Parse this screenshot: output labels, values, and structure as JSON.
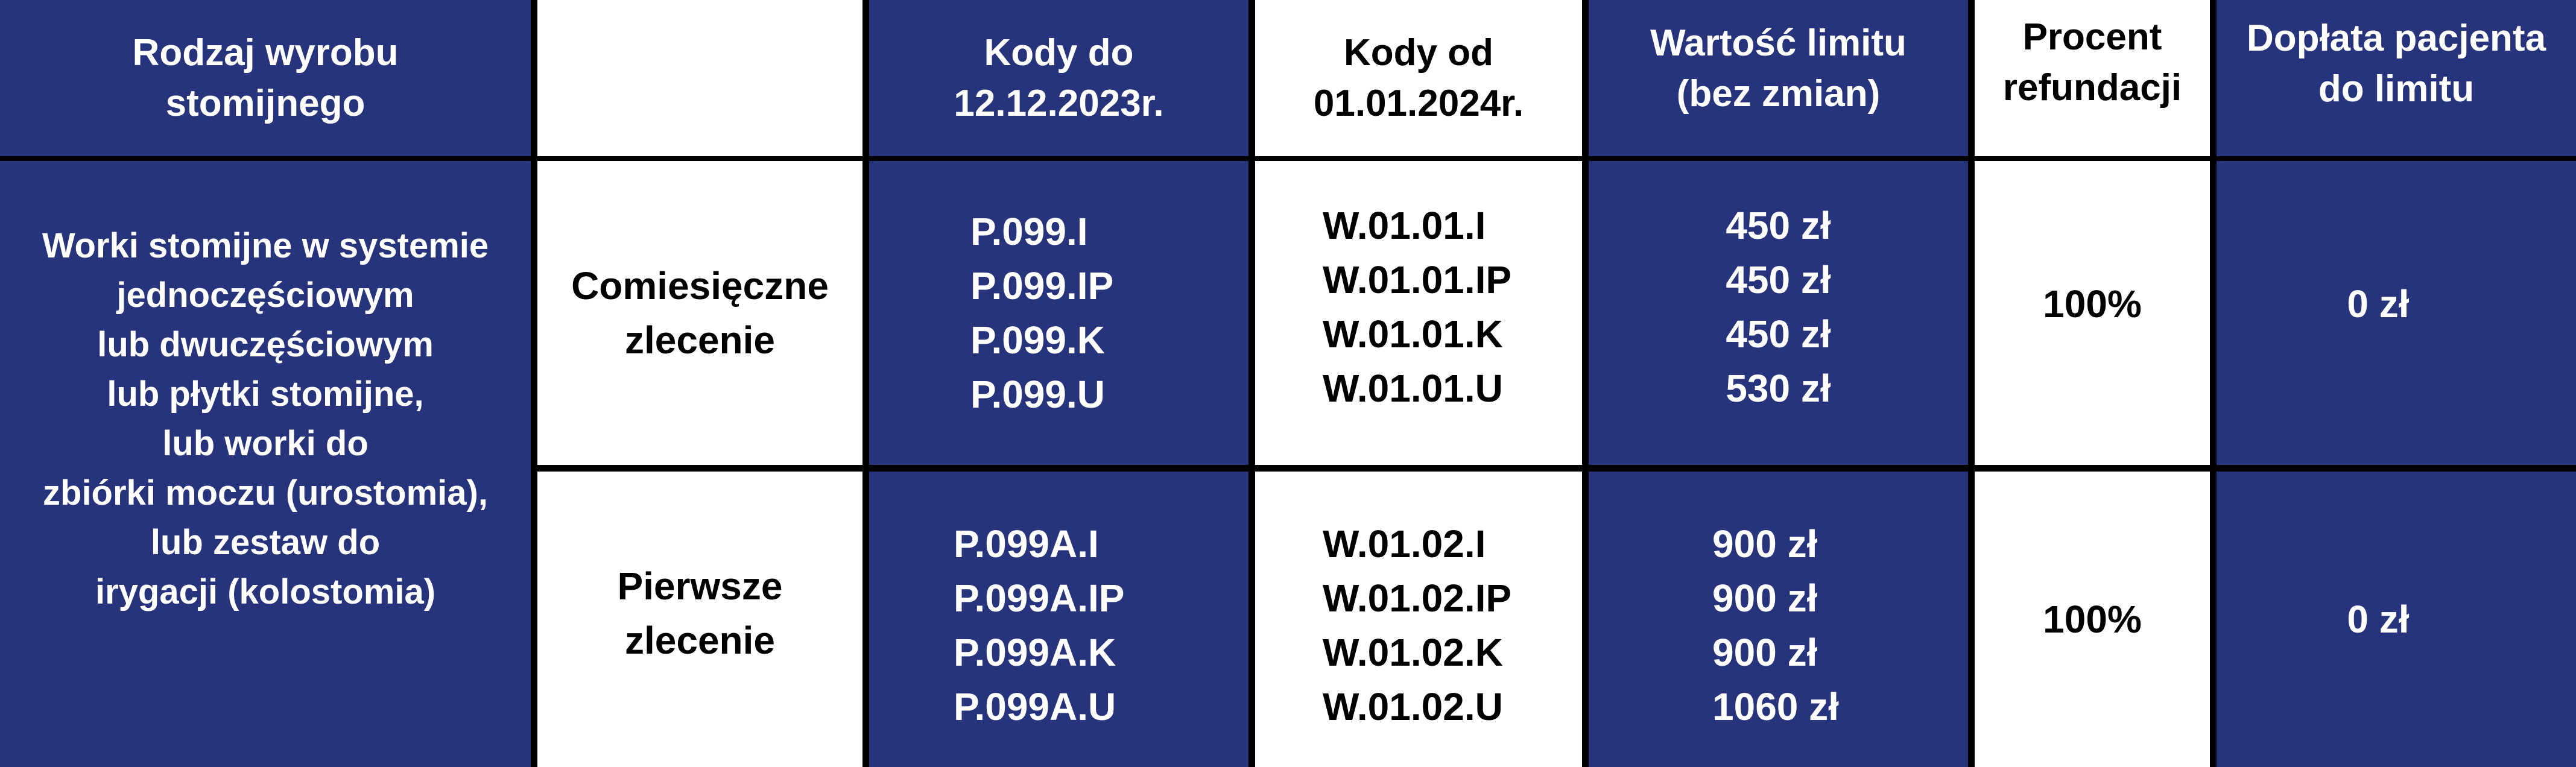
{
  "header": {
    "product_type": [
      "Rodzaj wyrobu",
      "stomijnego"
    ],
    "order_type": "",
    "codes_until": [
      "Kody do",
      "12.12.2023r."
    ],
    "codes_from": [
      "Kody od",
      "01.01.2024r."
    ],
    "limit_value": [
      "Wartość limitu",
      "(bez zmian)"
    ],
    "refund_percent": [
      "Procent",
      "refundacji"
    ],
    "patient_copay": [
      "Dopłata pacjenta",
      "do limitu"
    ]
  },
  "product_description": [
    "Worki stomijne w systemie",
    "jednoczęściowym",
    "lub dwuczęściowym",
    "lub płytki stomijne,",
    "lub worki do",
    "zbiórki moczu (urostomia),",
    "lub zestaw do",
    "irygacji (kolostomia)"
  ],
  "rows": [
    {
      "order_type": [
        "Comiesięczne",
        "zlecenie"
      ],
      "codes_until": [
        "P.099.I",
        "P.099.IP",
        "P.099.K",
        "P.099.U"
      ],
      "codes_from": [
        "W.01.01.I",
        "W.01.01.IP",
        "W.01.01.K",
        "W.01.01.U"
      ],
      "limits": [
        "450 zł",
        "450 zł",
        "450 zł",
        "530 zł"
      ],
      "refund_percent": "100%",
      "patient_copay": "0 zł"
    },
    {
      "order_type": [
        "Pierwsze",
        "zlecenie"
      ],
      "codes_until": [
        "P.099A.I",
        "P.099A.IP",
        "P.099A.K",
        "P.099A.U"
      ],
      "codes_from": [
        "W.01.02.I",
        "W.01.02.IP",
        "W.01.02.K",
        "W.01.02.U"
      ],
      "limits": [
        "900 zł",
        "900 zł",
        "900 zł",
        "1060 zł"
      ],
      "refund_percent": "100%",
      "patient_copay": "0 zł"
    }
  ],
  "colors": {
    "navy": "#27337a",
    "white": "#ffffff",
    "border": "#000000"
  }
}
